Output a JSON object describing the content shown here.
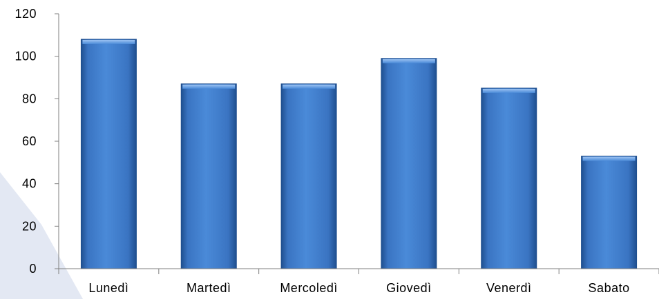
{
  "chart_data": {
    "type": "bar",
    "title": "",
    "xlabel": "",
    "ylabel": "",
    "categories": [
      "Lunedì",
      "Martedì",
      "Mercoledì",
      "Giovedì",
      "Venerdì",
      "Sabato"
    ],
    "values": [
      108,
      87,
      87,
      99,
      85,
      53
    ],
    "ylim": [
      0,
      120
    ],
    "yticks": [
      "0",
      "20",
      "40",
      "60",
      "80",
      "100",
      "120"
    ],
    "grid": false,
    "legend": "none",
    "colors": {
      "bar": "#3d7dd0",
      "bar_dark": "#1f4f8f",
      "bar_light": "#7fb0ea",
      "axis": "#7f7f7f",
      "background_shape": "#e3e8f3"
    }
  }
}
